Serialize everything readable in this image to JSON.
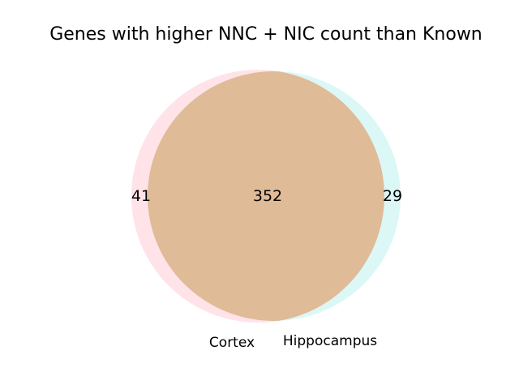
{
  "chart_data": {
    "type": "venn",
    "title": "Genes with higher NNC + NIC count than Known",
    "sets": [
      {
        "name": "Cortex",
        "only_count": "41",
        "color": "#ffc0cb"
      },
      {
        "name": "Hippocampus",
        "only_count": "29",
        "color": "#aff0ea"
      }
    ],
    "intersection": {
      "count": "352",
      "color": "#e0bb97"
    }
  }
}
